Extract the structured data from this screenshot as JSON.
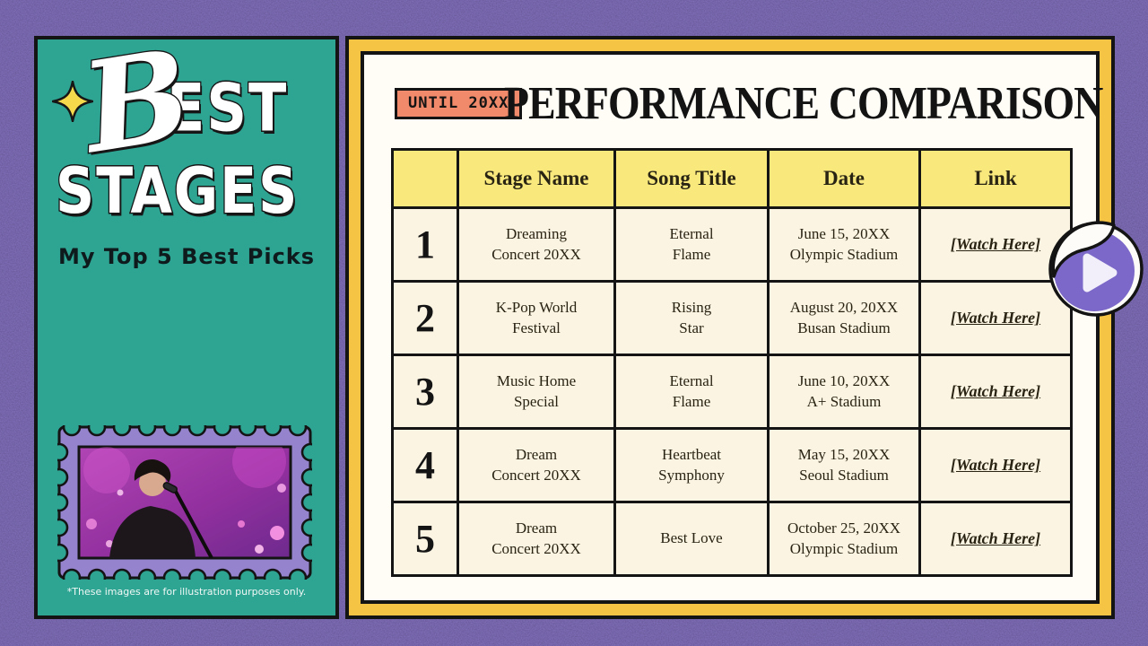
{
  "sidebar": {
    "logo": {
      "script_letter": "B",
      "line1_rest": "EST",
      "line2": "STAGES"
    },
    "tagline": "My Top 5 Best Picks",
    "footnote": "*These images are for illustration purposes only."
  },
  "panel": {
    "badge_label": "UNTIL 20XX",
    "title": "PERFORMANCE COMPARISON"
  },
  "table": {
    "headers": [
      "",
      "Stage Name",
      "Song Title",
      "Date",
      "Link"
    ],
    "rows": [
      {
        "rank": "1",
        "stage": "Dreaming\nConcert 20XX",
        "song": "Eternal\nFlame",
        "date": "June 15, 20XX\nOlympic Stadium",
        "link": "[Watch Here]"
      },
      {
        "rank": "2",
        "stage": "K-Pop World\nFestival",
        "song": "Rising\nStar",
        "date": "August 20, 20XX\nBusan Stadium",
        "link": "[Watch Here]"
      },
      {
        "rank": "3",
        "stage": "Music Home\nSpecial",
        "song": "Eternal\nFlame",
        "date": "June 10, 20XX\nA+ Stadium",
        "link": "[Watch Here]"
      },
      {
        "rank": "4",
        "stage": "Dream\nConcert 20XX",
        "song": "Heartbeat\nSymphony",
        "date": "May 15, 20XX\nSeoul Stadium",
        "link": "[Watch Here]"
      },
      {
        "rank": "5",
        "stage": "Dream\nConcert 20XX",
        "song": "Best Love",
        "date": "October 25, 20XX\nOlympic Stadium",
        "link": "[Watch Here]"
      }
    ]
  },
  "icons": {
    "sparkle": "four-point-star-icon",
    "play": "play-button-icon",
    "stamp": "postage-stamp-photo"
  },
  "colors": {
    "background_purple": "#8270bd",
    "sidebar_teal": "#2ea493",
    "frame_yellow": "#f6c445",
    "header_yellow": "#f9e97c",
    "cell_cream": "#fbf4e2",
    "panel_white": "#fffdf6",
    "badge_salmon": "#f08a6a",
    "stamp_purple": "#9583cd",
    "sticker_purple": "#7b68c8",
    "outline_black": "#141414"
  }
}
